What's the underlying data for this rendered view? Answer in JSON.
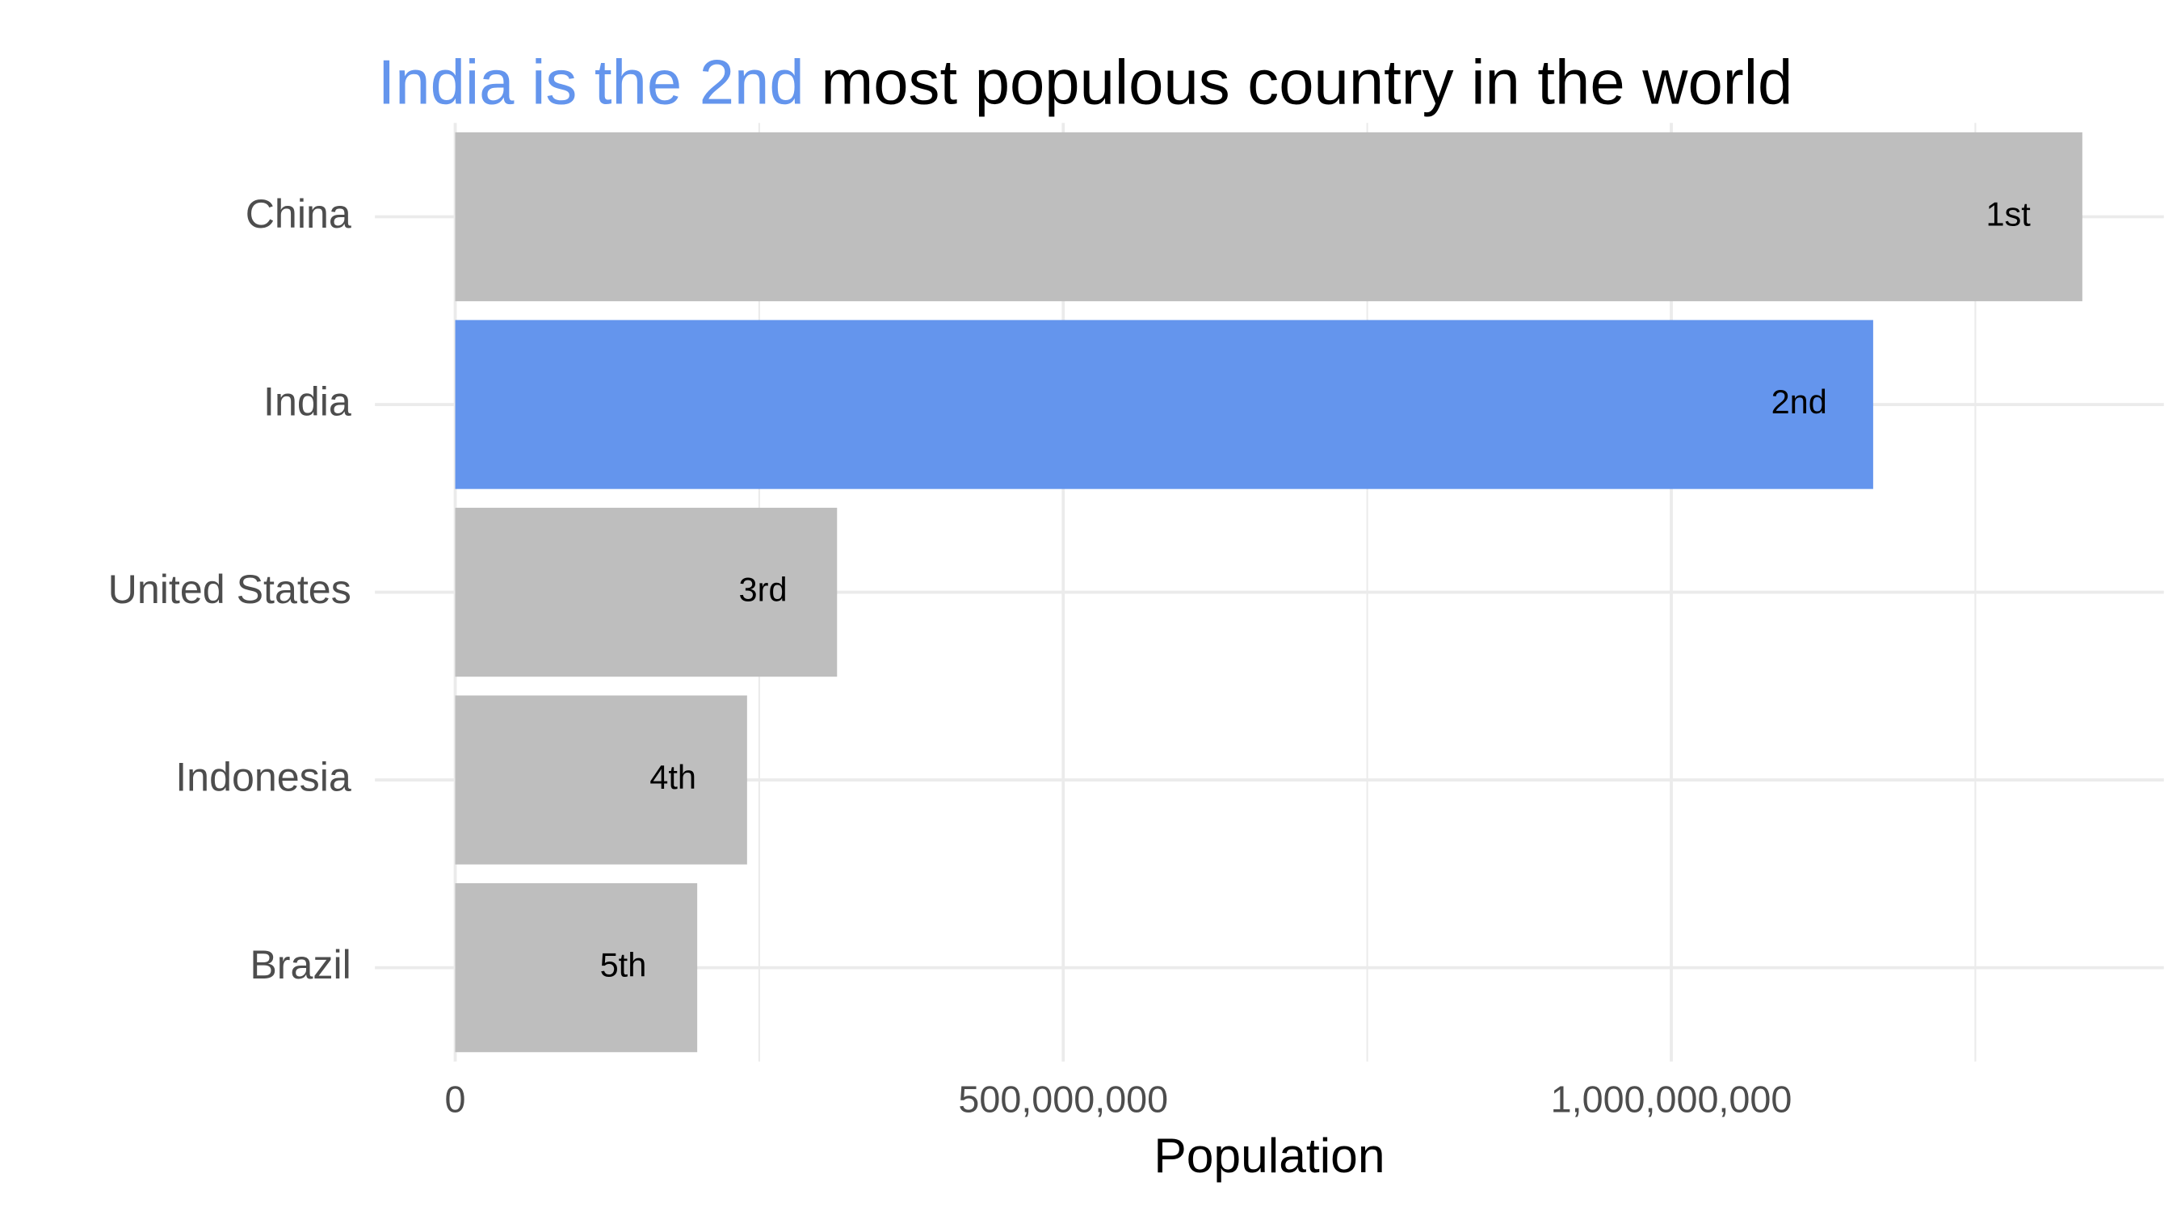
{
  "chart_data": {
    "type": "bar",
    "orientation": "horizontal",
    "title_highlight": "India is the 2nd",
    "title": "most populous country in the world",
    "highlight_color": "#6495ed",
    "x_label": "Population",
    "categories": [
      "China",
      "India",
      "United States",
      "Indonesia",
      "Brazil"
    ],
    "values": [
      1338000000,
      1166000000,
      314000000,
      240000000,
      199000000
    ],
    "rank_labels": [
      "1st",
      "2nd",
      "3rd",
      "4th",
      "5th"
    ],
    "colors": [
      "#bebebe",
      "#6495ed",
      "#bebebe",
      "#bebebe",
      "#bebebe"
    ],
    "xlim": [
      -66000000,
      1405000000
    ],
    "xticks": [
      0,
      {
        "value": 500000000,
        "label": "500,000,000"
      },
      {
        "value": 1000000000,
        "label": "1,000,000,000"
      }
    ],
    "minor_xticks": [
      250000000,
      750000000,
      1250000000
    ],
    "grid": true
  }
}
